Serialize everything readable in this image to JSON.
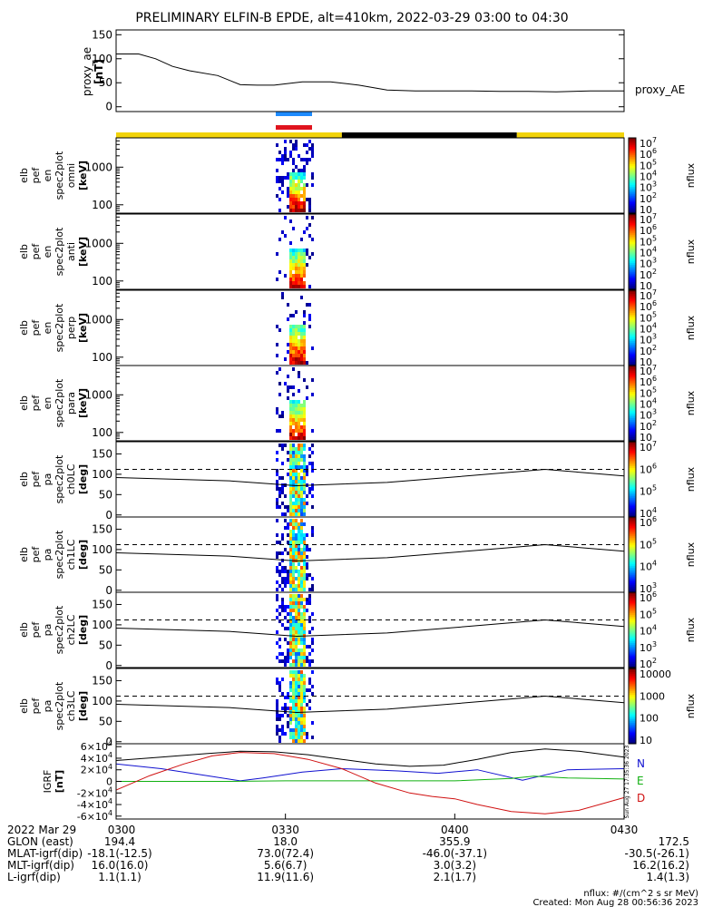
{
  "title": "PRELIMINARY ELFIN-B EPDE, alt=410km, 2022-03-29 03:00 to 04:30",
  "colors": {
    "sunlit": "#f2d30a",
    "shadow": "#000000",
    "bar_blue": "#1e8bff",
    "bar_red": "#e0141e",
    "igrf_n": "#1010d0",
    "igrf_e": "#10b010",
    "igrf_d": "#d01010"
  },
  "chart_data": [
    {
      "type": "line",
      "panel": "proxy_ae",
      "ylabel": [
        "proxy_ae",
        "[nT]"
      ],
      "ylim": [
        -10,
        160
      ],
      "yticks": [
        "0",
        "50",
        "100",
        "150"
      ],
      "ytick_values": [
        0,
        50,
        100,
        150
      ],
      "legend": "proxy_AE",
      "x": [
        0,
        4,
        7,
        10,
        13,
        18,
        22,
        25,
        28,
        33,
        38,
        43,
        48,
        53,
        58,
        63,
        68,
        73,
        78,
        84,
        90
      ],
      "y": [
        110,
        110,
        100,
        84,
        75,
        65,
        46,
        45,
        45,
        52,
        52,
        45,
        35,
        33,
        33,
        33,
        32,
        32,
        31,
        33,
        33
      ]
    },
    {
      "type": "heatmap",
      "panel": "spec_omni",
      "ylabel": [
        "elb",
        "pef",
        "en",
        "spec2plot",
        "omni",
        "[keV]"
      ],
      "yscale": "log",
      "yticks": [
        "100",
        "1000"
      ],
      "colorbar_ticks": [
        "10^7",
        "10^6",
        "10^5",
        "10^4",
        "10^3",
        "10^2",
        "10"
      ],
      "colorbar_label": "nflux"
    },
    {
      "type": "heatmap",
      "panel": "spec_anti",
      "ylabel": [
        "elb",
        "pef",
        "en",
        "spec2plot",
        "anti",
        "[keV]"
      ],
      "yscale": "log",
      "yticks": [
        "100",
        "1000"
      ],
      "colorbar_ticks": [
        "10^7",
        "10^6",
        "10^5",
        "10^4",
        "10^3",
        "10^2",
        "10"
      ],
      "colorbar_label": "nflux"
    },
    {
      "type": "heatmap",
      "panel": "spec_perp",
      "ylabel": [
        "elb",
        "pef",
        "en",
        "spec2plot",
        "perp",
        "[keV]"
      ],
      "yscale": "log",
      "yticks": [
        "100",
        "1000"
      ],
      "colorbar_ticks": [
        "10^7",
        "10^6",
        "10^5",
        "10^4",
        "10^3",
        "10^2",
        "10"
      ],
      "colorbar_label": "nflux"
    },
    {
      "type": "heatmap",
      "panel": "spec_para",
      "ylabel": [
        "elb",
        "pef",
        "en",
        "spec2plot",
        "para",
        "[keV]"
      ],
      "yscale": "log",
      "yticks": [
        "100",
        "1000"
      ],
      "colorbar_ticks": [
        "10^7",
        "10^6",
        "10^5",
        "10^4",
        "10^3",
        "10^2",
        "10"
      ],
      "colorbar_label": "nflux"
    },
    {
      "type": "heatmap",
      "panel": "pa_ch0",
      "ylabel": [
        "elb",
        "pef",
        "pa",
        "spec2plot",
        "ch0LC",
        "[deg]"
      ],
      "yticks": [
        "0",
        "50",
        "100",
        "150"
      ],
      "colorbar_ticks": [
        "10^7",
        "10^6",
        "10^5",
        "10^4"
      ],
      "colorbar_label": "nflux"
    },
    {
      "type": "heatmap",
      "panel": "pa_ch1",
      "ylabel": [
        "elb",
        "pef",
        "pa",
        "spec2plot",
        "ch1LC",
        "[deg]"
      ],
      "yticks": [
        "0",
        "50",
        "100",
        "150"
      ],
      "colorbar_ticks": [
        "10^6",
        "10^5",
        "10^4",
        "10^3"
      ],
      "colorbar_label": "nflux"
    },
    {
      "type": "heatmap",
      "panel": "pa_ch2",
      "ylabel": [
        "elb",
        "pef",
        "pa",
        "spec2plot",
        "ch2LC",
        "[deg]"
      ],
      "yticks": [
        "0",
        "50",
        "100",
        "150"
      ],
      "colorbar_ticks": [
        "10^6",
        "10^5",
        "10^4",
        "10^3",
        "10^2"
      ],
      "colorbar_label": "nflux"
    },
    {
      "type": "heatmap",
      "panel": "pa_ch3",
      "ylabel": [
        "elb",
        "pef",
        "pa",
        "spec2plot",
        "ch3LC",
        "[deg]"
      ],
      "yticks": [
        "0",
        "50",
        "100",
        "150"
      ],
      "colorbar_ticks": [
        "10000",
        "1000",
        "100",
        "10"
      ],
      "colorbar_label": "nflux"
    },
    {
      "type": "line",
      "panel": "igrf",
      "ylabel": [
        "IGRF",
        "[nT]"
      ],
      "ylim": [
        -65000,
        65000
      ],
      "yticks": [
        "-6×10^4",
        "-4×10^4",
        "-2×10^4",
        "0",
        "2×10^4",
        "4×10^4",
        "6×10^4"
      ],
      "ytick_values": [
        -60000,
        -40000,
        -20000,
        0,
        20000,
        40000,
        60000
      ],
      "series": [
        {
          "name": "N",
          "color": "#1010d0",
          "x": [
            0,
            8,
            16,
            22,
            26,
            33,
            40,
            50,
            57,
            64,
            72,
            80,
            90
          ],
          "y": [
            30000,
            22000,
            10000,
            1000,
            6000,
            16000,
            22000,
            18000,
            14000,
            20000,
            2000,
            20000,
            22000
          ]
        },
        {
          "name": "E",
          "color": "#10b010",
          "x": [
            0,
            10,
            20,
            30,
            40,
            50,
            60,
            70,
            74,
            80,
            90
          ],
          "y": [
            0,
            0,
            0,
            1000,
            1000,
            1000,
            1000,
            5000,
            9000,
            6000,
            4000
          ]
        },
        {
          "name": "D",
          "color": "#d01010",
          "x": [
            0,
            6,
            12,
            17,
            22,
            28,
            34,
            40,
            46,
            52,
            56,
            60,
            64,
            70,
            76,
            82,
            90
          ],
          "y": [
            -15000,
            10000,
            30000,
            44000,
            50000,
            48000,
            38000,
            22000,
            -3000,
            -20000,
            -26000,
            -30000,
            -40000,
            -52000,
            -56000,
            -50000,
            -28000
          ]
        },
        {
          "name": "",
          "color": "#000000",
          "x": [
            0,
            8,
            16,
            22,
            28,
            34,
            40,
            46,
            52,
            58,
            64,
            70,
            76,
            82,
            90
          ],
          "y": [
            36000,
            42000,
            48000,
            52000,
            51000,
            46000,
            38000,
            30000,
            26000,
            28000,
            38000,
            50000,
            56000,
            52000,
            42000
          ]
        }
      ]
    }
  ],
  "time_axis": {
    "row_label": "2022 Mar 29",
    "ticks": [
      "0300",
      "0330",
      "0400",
      "0430"
    ]
  },
  "ephemeris": [
    {
      "label": "GLON (east)",
      "values": [
        "194.4",
        "18.0",
        "355.9",
        "172.5"
      ]
    },
    {
      "label": "MLAT-igrf(dip)",
      "values": [
        "-18.1(-12.5)",
        "73.0(72.4)",
        "-46.0(-37.1)",
        "-30.5(-26.1)"
      ]
    },
    {
      "label": "MLT-igrf(dip)",
      "values": [
        "16.0(16.0)",
        "5.6(6.7)",
        "3.0(3.2)",
        "16.2(16.2)"
      ]
    },
    {
      "label": "L-igrf(dip)",
      "values": [
        "1.1(1.1)",
        "11.9(11.6)",
        "2.1(1.7)",
        "1.4(1.3)"
      ]
    }
  ],
  "footer": {
    "units": "nflux: #/(cm^2 s sr MeV)",
    "created": "Created: Mon Aug 28 00:56:36 2023",
    "stamp": "Sun Aug 27 17:35:36 2023"
  },
  "igrf_legend": [
    "N",
    "E",
    "D"
  ]
}
